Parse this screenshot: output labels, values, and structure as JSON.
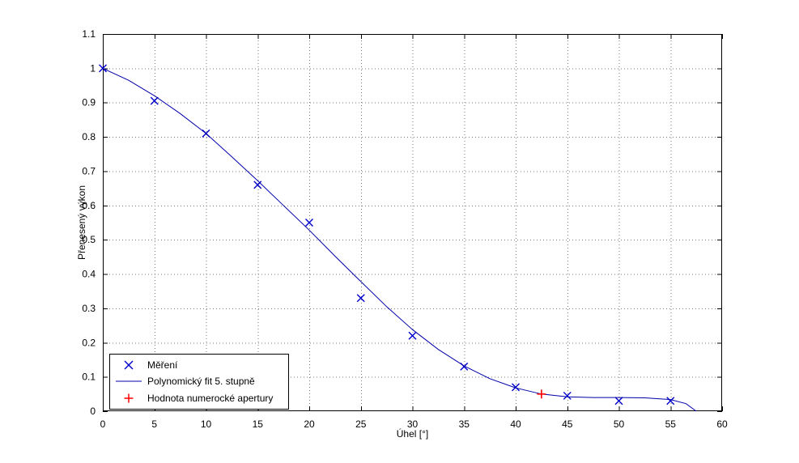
{
  "figure": {
    "background": "#ffffff"
  },
  "chart_data": {
    "type": "line",
    "title": "",
    "xlabel": "Úhel [°]",
    "ylabel": "Přenesený výkon",
    "xlim": [
      0,
      60
    ],
    "ylim": [
      0,
      1.1
    ],
    "xticks": [
      0,
      5,
      10,
      15,
      20,
      25,
      30,
      35,
      40,
      45,
      50,
      55,
      60
    ],
    "xtick_labels": [
      "0",
      "5",
      "10",
      "15",
      "20",
      "25",
      "30",
      "35",
      "40",
      "45",
      "50",
      "55",
      "60"
    ],
    "yticks": [
      0,
      0.1,
      0.2,
      0.3,
      0.4,
      0.5,
      0.6,
      0.7,
      0.8,
      0.9,
      1.0,
      1.1
    ],
    "ytick_labels": [
      "0",
      "0.1",
      "0.2",
      "0.3",
      "0.4",
      "0.5",
      "0.6",
      "0.7",
      "0.8",
      "0.9",
      "1",
      "1.1"
    ],
    "grid": true,
    "grid_style": "dotted",
    "legend_position": "lower-left",
    "colors": {
      "axes": "#000000",
      "grid": "#7a7a7a",
      "measurement": "#0000cc",
      "fit": "#0000aa",
      "aperture": "#ff0000"
    },
    "series": [
      {
        "name": "Měření",
        "type": "scatter",
        "marker": "x",
        "color": "#0000cc",
        "x": [
          0,
          5,
          10,
          15,
          20,
          25,
          30,
          35,
          40,
          45,
          50,
          55
        ],
        "y": [
          1.0,
          0.905,
          0.81,
          0.66,
          0.55,
          0.33,
          0.22,
          0.13,
          0.07,
          0.045,
          0.03,
          0.03
        ]
      },
      {
        "name": "Polynomický fit 5. stupně",
        "type": "line",
        "color": "#0000aa",
        "x": [
          0,
          2.5,
          5,
          7.5,
          10,
          12.5,
          15,
          17.5,
          20,
          22.5,
          25,
          27.5,
          30,
          32.5,
          35,
          37.5,
          40,
          42.5,
          45,
          47.5,
          50,
          52.5,
          55,
          56.5,
          57.5
        ],
        "y": [
          1.0,
          0.965,
          0.92,
          0.868,
          0.81,
          0.742,
          0.672,
          0.6,
          0.528,
          0.452,
          0.378,
          0.305,
          0.238,
          0.18,
          0.132,
          0.095,
          0.068,
          0.05,
          0.042,
          0.04,
          0.04,
          0.039,
          0.034,
          0.022,
          0.0
        ]
      },
      {
        "name": "Hodnota numerocké apertury",
        "type": "scatter",
        "marker": "+",
        "color": "#ff0000",
        "x": [
          42.5
        ],
        "y": [
          0.05
        ]
      }
    ]
  }
}
